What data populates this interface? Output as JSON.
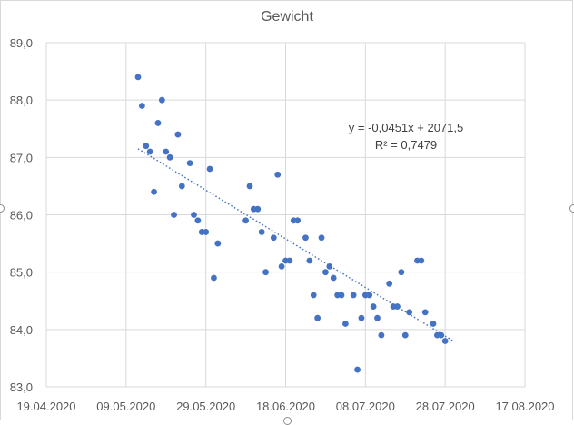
{
  "chart_data": {
    "type": "scatter",
    "title": "Gewicht",
    "xlabel": "",
    "ylabel": "",
    "x_range": [
      "2020-04-19",
      "2020-08-17"
    ],
    "ylim": [
      83.0,
      89.0
    ],
    "x_ticks": [
      "19.04.2020",
      "09.05.2020",
      "29.05.2020",
      "18.06.2020",
      "08.07.2020",
      "28.07.2020",
      "17.08.2020"
    ],
    "y_ticks": [
      "83,0",
      "84,0",
      "85,0",
      "86,0",
      "87,0",
      "88,0",
      "89,0"
    ],
    "grid": true,
    "marker_color": "#4472c4",
    "trendline": {
      "type": "linear",
      "style": "dotted",
      "equation": "y = -0,0451x + 2071,5",
      "r_squared": "R² = 0,7479",
      "start": [
        "2020-05-12",
        87.15
      ],
      "end": [
        "2020-07-30",
        83.8
      ]
    },
    "series": [
      {
        "points": [
          [
            "2020-05-12",
            88.4
          ],
          [
            "2020-05-13",
            87.9
          ],
          [
            "2020-05-14",
            87.2
          ],
          [
            "2020-05-15",
            87.1
          ],
          [
            "2020-05-16",
            86.4
          ],
          [
            "2020-05-17",
            87.6
          ],
          [
            "2020-05-18",
            88.0
          ],
          [
            "2020-05-19",
            87.1
          ],
          [
            "2020-05-20",
            87.0
          ],
          [
            "2020-05-21",
            86.0
          ],
          [
            "2020-05-22",
            87.4
          ],
          [
            "2020-05-23",
            86.5
          ],
          [
            "2020-05-25",
            86.9
          ],
          [
            "2020-05-26",
            86.0
          ],
          [
            "2020-05-27",
            85.9
          ],
          [
            "2020-05-28",
            85.7
          ],
          [
            "2020-05-29",
            85.7
          ],
          [
            "2020-05-30",
            86.8
          ],
          [
            "2020-05-31",
            84.9
          ],
          [
            "2020-06-01",
            85.5
          ],
          [
            "2020-06-08",
            85.9
          ],
          [
            "2020-06-09",
            86.5
          ],
          [
            "2020-06-10",
            86.1
          ],
          [
            "2020-06-11",
            86.1
          ],
          [
            "2020-06-12",
            85.7
          ],
          [
            "2020-06-13",
            85.0
          ],
          [
            "2020-06-15",
            85.6
          ],
          [
            "2020-06-16",
            86.7
          ],
          [
            "2020-06-17",
            85.1
          ],
          [
            "2020-06-18",
            85.2
          ],
          [
            "2020-06-19",
            85.2
          ],
          [
            "2020-06-20",
            85.9
          ],
          [
            "2020-06-21",
            85.9
          ],
          [
            "2020-06-23",
            85.6
          ],
          [
            "2020-06-24",
            85.2
          ],
          [
            "2020-06-25",
            84.6
          ],
          [
            "2020-06-26",
            84.2
          ],
          [
            "2020-06-27",
            85.6
          ],
          [
            "2020-06-28",
            85.0
          ],
          [
            "2020-06-29",
            85.1
          ],
          [
            "2020-06-30",
            84.9
          ],
          [
            "2020-07-01",
            84.6
          ],
          [
            "2020-07-02",
            84.6
          ],
          [
            "2020-07-03",
            84.1
          ],
          [
            "2020-07-05",
            84.6
          ],
          [
            "2020-07-06",
            83.3
          ],
          [
            "2020-07-07",
            84.2
          ],
          [
            "2020-07-08",
            84.6
          ],
          [
            "2020-07-09",
            84.6
          ],
          [
            "2020-07-10",
            84.4
          ],
          [
            "2020-07-11",
            84.2
          ],
          [
            "2020-07-12",
            83.9
          ],
          [
            "2020-07-14",
            84.8
          ],
          [
            "2020-07-15",
            84.4
          ],
          [
            "2020-07-16",
            84.4
          ],
          [
            "2020-07-17",
            85.0
          ],
          [
            "2020-07-18",
            83.9
          ],
          [
            "2020-07-19",
            84.3
          ],
          [
            "2020-07-21",
            85.2
          ],
          [
            "2020-07-22",
            85.2
          ],
          [
            "2020-07-23",
            84.3
          ],
          [
            "2020-07-25",
            84.1
          ],
          [
            "2020-07-26",
            83.9
          ],
          [
            "2020-07-27",
            83.9
          ],
          [
            "2020-07-28",
            83.8
          ]
        ]
      }
    ]
  }
}
